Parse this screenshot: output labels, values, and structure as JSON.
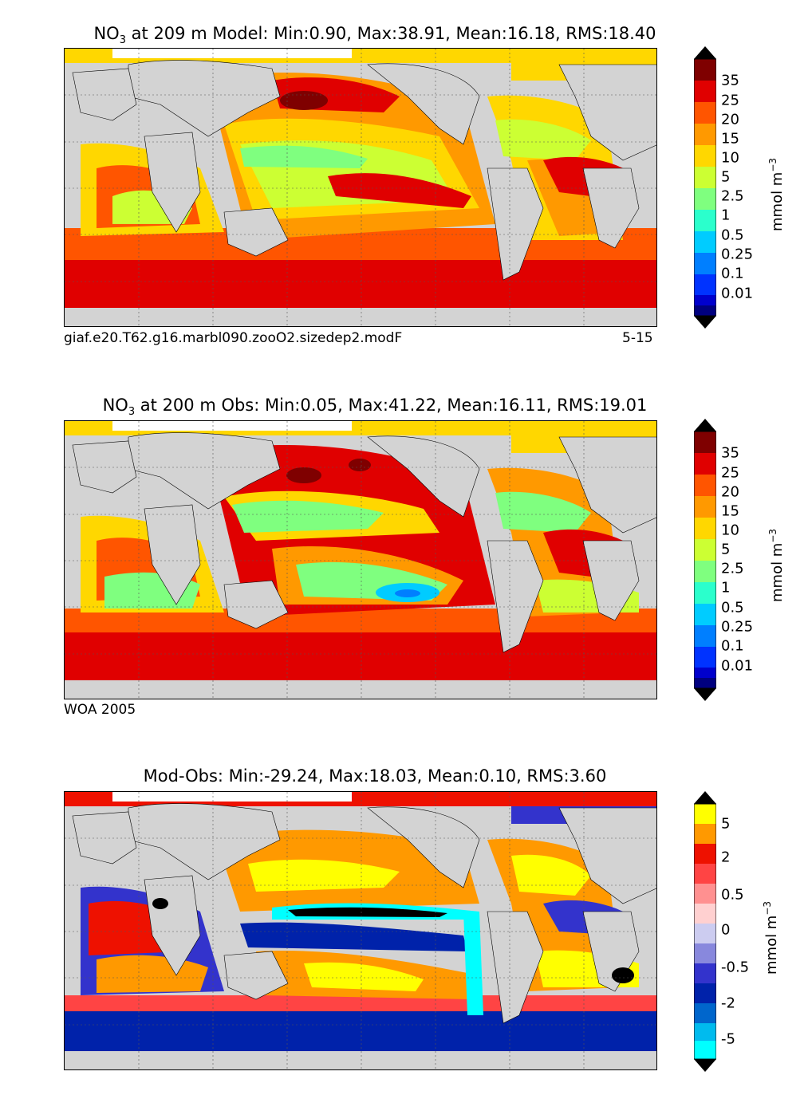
{
  "panels": [
    {
      "title": "NO3 at 209 m Model: Min:0.90, Max:38.91, Mean:16.18, RMS:18.40",
      "title_prefix": "NO",
      "title_sub": "3",
      "title_rest": " at 209 m Model: Min:0.90, Max:38.91, Mean:16.18, RMS:18.40",
      "footer_left": "giaf.e20.T62.g16.marbl090.zooO2.sizedep2.modF",
      "footer_right": "5-15",
      "colorbar_ticks": [
        "35",
        "25",
        "20",
        "15",
        "10",
        "5",
        "2.5",
        "1",
        "0.5",
        "0.25",
        "0.1",
        "0.01"
      ],
      "unit_main": "mmol m",
      "unit_sup": "−3"
    },
    {
      "title": "NO3 at 200 m Obs: Min:0.05, Max:41.22, Mean:16.11, RMS:19.01",
      "title_prefix": "NO",
      "title_sub": "3",
      "title_rest": " at 200 m Obs: Min:0.05, Max:41.22, Mean:16.11, RMS:19.01",
      "footer_left": "WOA 2005",
      "footer_right": "",
      "colorbar_ticks": [
        "35",
        "25",
        "20",
        "15",
        "10",
        "5",
        "2.5",
        "1",
        "0.5",
        "0.25",
        "0.1",
        "0.01"
      ],
      "unit_main": "mmol m",
      "unit_sup": "−3"
    },
    {
      "title": "Mod-Obs: Min:-29.24, Max:18.03, Mean:0.10, RMS:3.60",
      "title_prefix": "Mod-Obs: Min:-29.24, Max:18.03, Mean:0.10, RMS:3.60",
      "title_sub": "",
      "title_rest": "",
      "footer_left": "",
      "footer_right": "",
      "colorbar_ticks": [
        "5",
        "2",
        "0.5",
        "0",
        "-0.5",
        "-2",
        "-5"
      ],
      "unit_main": "mmol m",
      "unit_sup": "−3"
    }
  ],
  "colors": {
    "land": "#d3d3d3",
    "seq": [
      "#00007f",
      "#0000cd",
      "#0033ff",
      "#007fff",
      "#00ccff",
      "#2bffcc",
      "#7fff7f",
      "#ccff33",
      "#ffd700",
      "#ff9900",
      "#ff5500",
      "#e00000",
      "#7f0000"
    ],
    "diff": [
      "#00ffff",
      "#00bbee",
      "#0066cc",
      "#0022aa",
      "#3333cc",
      "#8888dd",
      "#ccccf0",
      "#ffd0d0",
      "#ff9090",
      "#ff4444",
      "#ee1100",
      "#ff9900",
      "#ffff00"
    ]
  }
}
